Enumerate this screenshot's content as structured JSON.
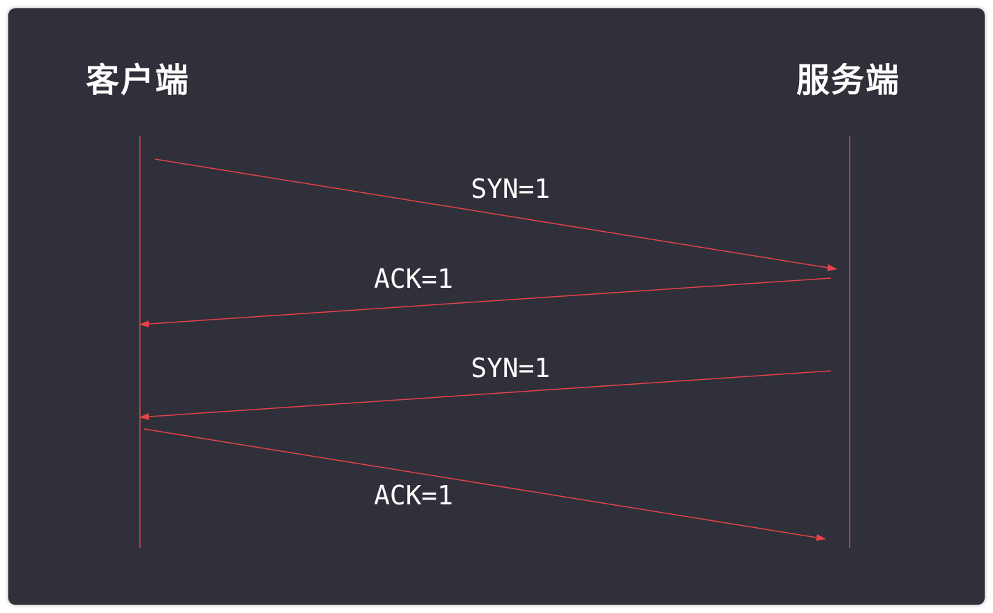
{
  "participants": {
    "client": "客户端",
    "server": "服务端"
  },
  "messages": [
    {
      "label": "SYN=1",
      "from": "client",
      "to": "server"
    },
    {
      "label": "ACK=1",
      "from": "server",
      "to": "client"
    },
    {
      "label": "SYN=1",
      "from": "server",
      "to": "client"
    },
    {
      "label": "ACK=1",
      "from": "client",
      "to": "server"
    }
  ],
  "colors": {
    "background": "#2f3039",
    "line": "#e8424a",
    "text": "#ffffff"
  }
}
